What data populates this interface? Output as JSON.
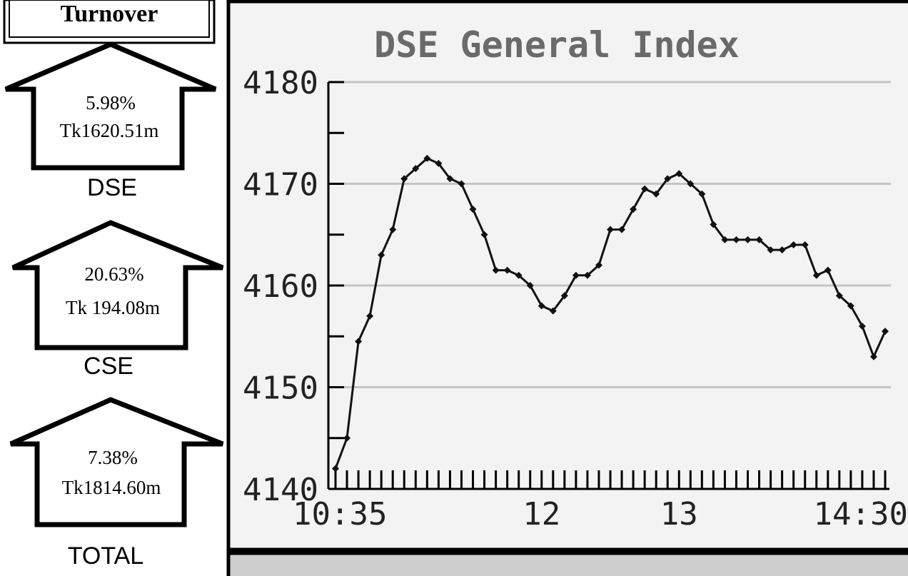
{
  "turnover": {
    "title": "Turnover",
    "markets": [
      {
        "change": "5.98%",
        "amount": "Tk1620.51m",
        "name": "DSE"
      },
      {
        "change": "20.63%",
        "amount": "Tk 194.08m",
        "name": "CSE"
      },
      {
        "change": "7.38%",
        "amount": "Tk1814.60m",
        "name": "TOTAL"
      }
    ]
  },
  "chart_data": {
    "type": "line",
    "title": "DSE General Index",
    "color": "#111111",
    "categories": [
      "10:35",
      null,
      null,
      null,
      null,
      null,
      null,
      null,
      null,
      null,
      null,
      null,
      null,
      null,
      null,
      null,
      null,
      null,
      "12",
      null,
      null,
      null,
      null,
      null,
      null,
      null,
      null,
      null,
      null,
      null,
      "13",
      null,
      null,
      null,
      null,
      null,
      null,
      null,
      null,
      null,
      null,
      null,
      null,
      null,
      null,
      null,
      null,
      null,
      "14:30"
    ],
    "values": [
      4142,
      4145,
      4154.5,
      4157,
      4163,
      4165.5,
      4170.5,
      4171.5,
      4172.5,
      4172,
      4170.5,
      4170,
      4167.5,
      4165,
      4161.5,
      4161.5,
      4161,
      4160,
      4158,
      4157.5,
      4159,
      4161,
      4161,
      4162,
      4165.5,
      4165.5,
      4167.5,
      4169.5,
      4169,
      4170.5,
      4171,
      4170,
      4169,
      4166,
      4164.5,
      4164.5,
      4164.5,
      4164.5,
      4163.5,
      4163.5,
      4164,
      4164,
      4161,
      4161.5,
      4159,
      4158,
      4156,
      4153,
      4155.5
    ],
    "ylim": [
      4140,
      4180
    ],
    "yticks": [
      4140,
      4150,
      4160,
      4170,
      4180
    ],
    "grid": true
  }
}
